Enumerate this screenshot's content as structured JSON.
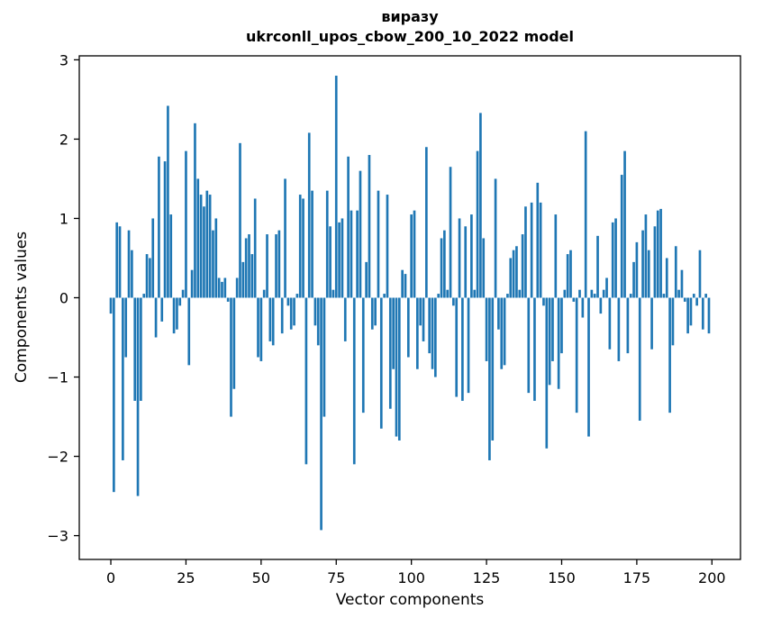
{
  "chart_data": {
    "type": "bar",
    "title": "виразу",
    "subtitle": "ukrconll_upos_cbow_200_10_2022 model",
    "xlabel": "Vector components",
    "ylabel": "Components values",
    "bar_color": "#1f77b4",
    "axis_color": "#000000",
    "background_color": "#ffffff",
    "grid": false,
    "legend": "none",
    "xlim": [
      -10.5,
      209.5
    ],
    "ylim": [
      -3.3,
      3.05
    ],
    "xticks": [
      0,
      25,
      50,
      75,
      100,
      125,
      150,
      175,
      200
    ],
    "yticks": [
      -3,
      -2,
      -1,
      0,
      1,
      2,
      3
    ],
    "n_components": 200,
    "values": [
      -0.2,
      -2.45,
      0.95,
      0.9,
      -2.05,
      -0.75,
      0.85,
      0.6,
      -1.3,
      -2.5,
      -1.3,
      0.05,
      0.55,
      0.5,
      1.0,
      -0.5,
      1.78,
      -0.3,
      1.72,
      2.42,
      1.05,
      -0.45,
      -0.4,
      -0.1,
      0.1,
      1.85,
      -0.85,
      0.35,
      2.2,
      1.5,
      1.3,
      1.15,
      1.35,
      1.3,
      0.85,
      1.0,
      0.25,
      0.2,
      0.25,
      -0.05,
      -1.5,
      -1.15,
      0.25,
      1.95,
      0.45,
      0.75,
      0.8,
      0.55,
      1.25,
      -0.75,
      -0.8,
      0.1,
      0.8,
      -0.55,
      -0.6,
      0.8,
      0.85,
      -0.45,
      1.5,
      -0.1,
      -0.4,
      -0.35,
      0.05,
      1.3,
      1.25,
      -2.1,
      2.08,
      1.35,
      -0.35,
      -0.6,
      -2.93,
      -1.5,
      1.35,
      0.9,
      0.1,
      2.8,
      0.95,
      1.0,
      -0.55,
      1.78,
      1.1,
      -2.1,
      1.1,
      1.6,
      -1.45,
      0.45,
      1.8,
      -0.4,
      -0.35,
      1.35,
      -1.65,
      0.05,
      1.3,
      -1.4,
      -0.9,
      -1.75,
      -1.8,
      0.35,
      0.3,
      -0.75,
      1.05,
      1.1,
      -0.9,
      -0.35,
      -0.55,
      1.9,
      -0.7,
      -0.9,
      -1.0,
      0.05,
      0.75,
      0.85,
      0.1,
      1.65,
      -0.1,
      -1.25,
      1.0,
      -1.3,
      0.9,
      -1.2,
      1.05,
      0.1,
      1.85,
      2.33,
      0.75,
      -0.8,
      -2.05,
      -1.8,
      1.5,
      -0.4,
      -0.9,
      -0.85,
      0.05,
      0.5,
      0.6,
      0.65,
      0.1,
      0.8,
      1.15,
      -1.2,
      1.2,
      -1.3,
      1.45,
      1.2,
      -0.1,
      -1.9,
      -1.1,
      -0.8,
      1.05,
      -1.15,
      -0.7,
      0.1,
      0.55,
      0.6,
      -0.05,
      -1.45,
      0.1,
      -0.25,
      2.1,
      -1.75,
      0.1,
      0.05,
      0.78,
      -0.2,
      0.1,
      0.25,
      -0.65,
      0.95,
      1.0,
      -0.8,
      1.55,
      1.85,
      -0.7,
      0.05,
      0.45,
      0.7,
      -1.55,
      0.85,
      1.05,
      0.6,
      -0.65,
      0.9,
      1.1,
      1.12,
      0.05,
      0.5,
      -1.45,
      -0.6,
      0.65,
      0.1,
      0.35,
      -0.05,
      -0.45,
      -0.35,
      0.05,
      -0.1,
      0.6,
      -0.4,
      0.05,
      -0.45
    ]
  }
}
